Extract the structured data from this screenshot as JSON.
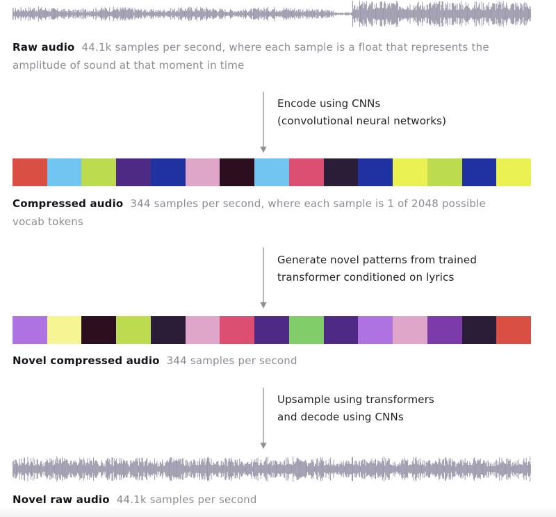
{
  "sections": {
    "raw_audio": {
      "title": "Raw audio",
      "description": "44.1k samples per second, where each sample is a float that represents the",
      "description_line2": "amplitude of sound at that moment in time",
      "wave_color": "#9a98ab"
    },
    "encode_step": {
      "line1": "Encode using CNNs",
      "line2": "(convolutional neural networks)"
    },
    "compressed_audio": {
      "title": "Compressed audio",
      "description": "344 samples per second, where each sample is 1 of 2048 possible",
      "description_line2": "vocab tokens",
      "tokens": [
        "#d94f43",
        "#72c5f1",
        "#bcdb4f",
        "#4e2a85",
        "#2032a0",
        "#e0a6c9",
        "#2c0f1e",
        "#72c5f1",
        "#dc4f73",
        "#2b1c38",
        "#2032a0",
        "#eaf253",
        "#bcdb4f",
        "#2032a0",
        "#eaf253"
      ]
    },
    "generate_step": {
      "line1": "Generate novel patterns from trained",
      "line2": "transformer conditioned on lyrics"
    },
    "novel_compressed_audio": {
      "title": "Novel compressed audio",
      "description": "344 samples per second",
      "tokens": [
        "#ae73e0",
        "#f6f594",
        "#2c0f1e",
        "#bcdb4f",
        "#2b1c38",
        "#e0a6c9",
        "#dc4f73",
        "#4e2a85",
        "#80cd6a",
        "#4e2a85",
        "#ae73e0",
        "#e0a6c9",
        "#7b3ba8",
        "#2b1c38",
        "#d94f43"
      ]
    },
    "upsample_step": {
      "line1": "Upsample using transformers",
      "line2": "and decode using CNNs"
    },
    "novel_raw_audio": {
      "title": "Novel raw audio",
      "description": "44.1k samples per second",
      "wave_color": "#9a98ab"
    }
  },
  "colors": {
    "arrow": "#8f8f96",
    "title_text": "#14141a",
    "description_text": "#8c8c94"
  }
}
